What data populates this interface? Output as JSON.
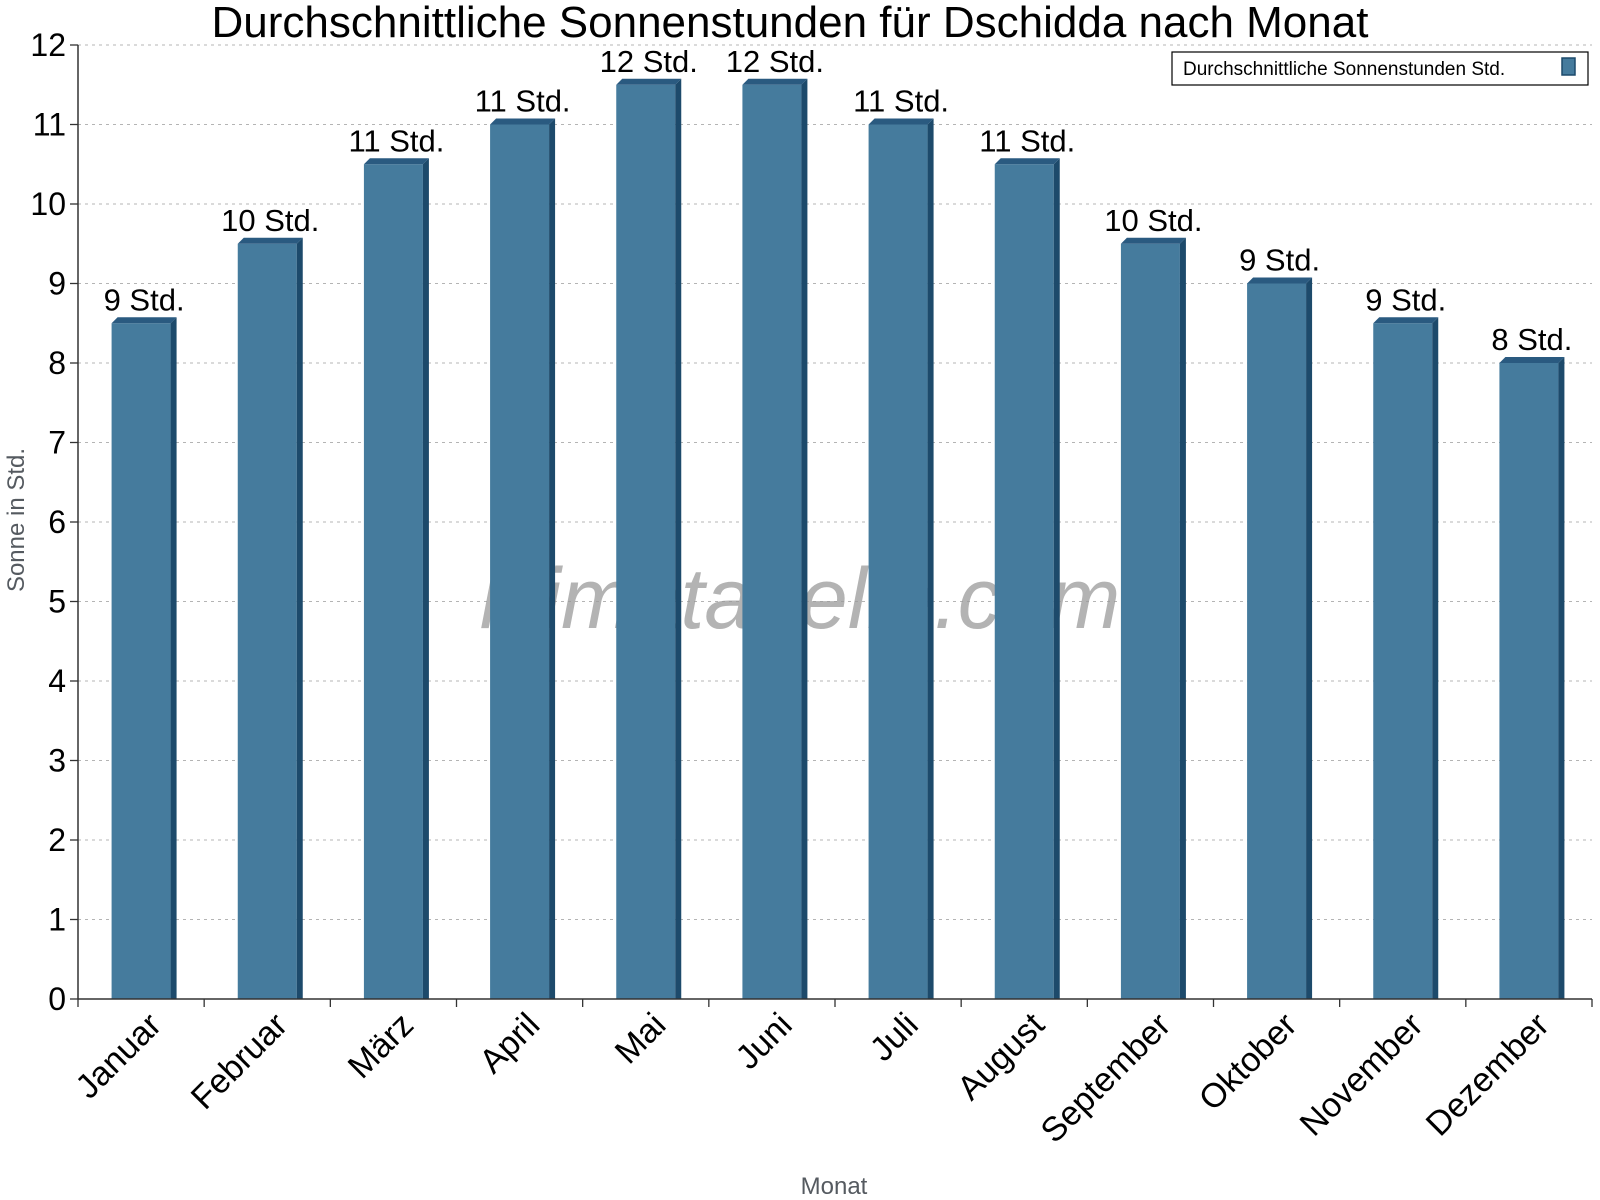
{
  "chart_data": {
    "type": "bar",
    "title": "Durchschnittliche Sonnenstunden für Dschidda nach Monat",
    "xlabel": "Monat",
    "ylabel": "Sonne in Std.",
    "ylim": [
      0,
      12
    ],
    "yticks": [
      "0",
      "1",
      "2",
      "3",
      "4",
      "5",
      "6",
      "7",
      "8",
      "9",
      "10",
      "11",
      "12"
    ],
    "grid": true,
    "legend_position": "top-right",
    "categories": [
      "Januar",
      "Februar",
      "März",
      "April",
      "Mai",
      "Juni",
      "Juli",
      "August",
      "September",
      "Oktober",
      "November",
      "Dezember"
    ],
    "series": [
      {
        "name": "Durchschnittliche Sonnenstunden Std.",
        "values": [
          8.5,
          9.5,
          10.5,
          11,
          11.5,
          11.5,
          11,
          10.5,
          9.5,
          9,
          8.5,
          8
        ],
        "labels": [
          "9 Std.",
          "10 Std.",
          "11 Std.",
          "11 Std.",
          "12 Std.",
          "12 Std.",
          "11 Std.",
          "11 Std.",
          "10 Std.",
          "9 Std.",
          "9 Std.",
          "8 Std."
        ]
      }
    ],
    "colors": {
      "bar": "#457b9d",
      "bar_side": "#1d4a6b",
      "bar_top": "#2a5a80"
    },
    "watermark": "klimatabelle.com"
  }
}
